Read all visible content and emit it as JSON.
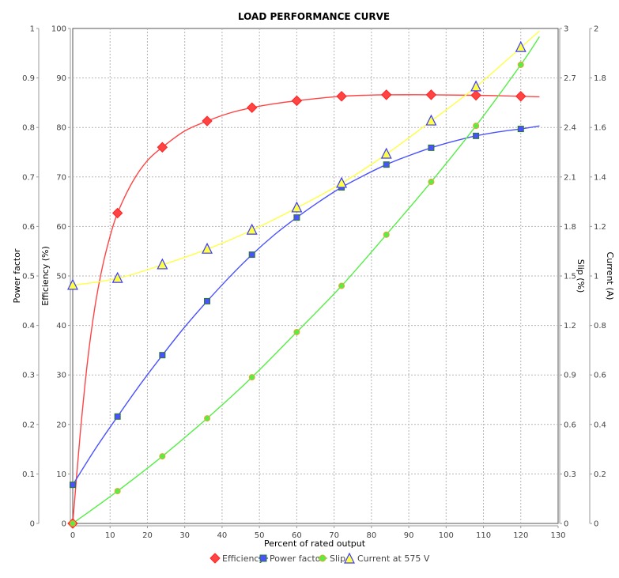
{
  "chart_data": {
    "type": "line",
    "title": "LOAD PERFORMANCE CURVE",
    "xlabel": "Percent of rated output",
    "xlim": [
      0,
      130
    ],
    "xticks": [
      0,
      10,
      20,
      30,
      40,
      50,
      60,
      70,
      80,
      90,
      100,
      110,
      120,
      130
    ],
    "grid": true,
    "legend_position": "bottom",
    "axes": {
      "power_factor": {
        "label": "Power factor",
        "side": "left-outer",
        "range": [
          0,
          1
        ],
        "ticks": [
          "0",
          "0.1",
          "0.2",
          "0.3",
          "0.4",
          "0.5",
          "0.6",
          "0.7",
          "0.8",
          "0.9",
          "1"
        ]
      },
      "efficiency": {
        "label": "Efficiency (%)",
        "side": "left-inner",
        "range": [
          0,
          100
        ],
        "ticks": [
          "0",
          "10",
          "20",
          "30",
          "40",
          "50",
          "60",
          "70",
          "80",
          "90",
          "100"
        ]
      },
      "slip": {
        "label": "Slip (%)",
        "side": "right-inner",
        "range": [
          0,
          3
        ],
        "ticks": [
          "0",
          "0.3",
          "0.6",
          "0.9",
          "1.2",
          "1.5",
          "1.8",
          "2.1",
          "2.4",
          "2.7",
          "3"
        ]
      },
      "current": {
        "label": "Current (A)",
        "side": "right-outer",
        "range": [
          0,
          2
        ],
        "ticks": [
          "0",
          "0.2",
          "0.4",
          "0.6",
          "0.8",
          "1",
          "1.2",
          "1.4",
          "1.6",
          "1.8",
          "2"
        ]
      }
    },
    "x": [
      0,
      12,
      24,
      36,
      48,
      60,
      72,
      84,
      96,
      108,
      120
    ],
    "series": [
      {
        "name": "Efficiency",
        "axis": "efficiency",
        "color": "#ff4444",
        "marker": "diamond",
        "values": [
          0,
          62.7,
          76.0,
          81.3,
          84.0,
          85.4,
          86.3,
          86.6,
          86.6,
          86.5,
          86.3
        ],
        "curve": [
          [
            0,
            0
          ],
          [
            2,
            18
          ],
          [
            4,
            33
          ],
          [
            6,
            44
          ],
          [
            8,
            52
          ],
          [
            10,
            58
          ],
          [
            12,
            62.7
          ],
          [
            16,
            69
          ],
          [
            20,
            73.3
          ],
          [
            24,
            76
          ],
          [
            30,
            79.3
          ],
          [
            36,
            81.3
          ],
          [
            42,
            82.9
          ],
          [
            48,
            84
          ],
          [
            54,
            84.8
          ],
          [
            60,
            85.4
          ],
          [
            66,
            85.9
          ],
          [
            72,
            86.3
          ],
          [
            78,
            86.5
          ],
          [
            84,
            86.6
          ],
          [
            96,
            86.6
          ],
          [
            108,
            86.5
          ],
          [
            120,
            86.3
          ],
          [
            125,
            86.2
          ]
        ]
      },
      {
        "name": "Power factor",
        "axis": "power_factor",
        "color": "#4a52ff",
        "marker": "square",
        "values": [
          0.078,
          0.216,
          0.34,
          0.449,
          0.543,
          0.618,
          0.679,
          0.725,
          0.759,
          0.783,
          0.797
        ],
        "curve": [
          [
            0,
            0.078
          ],
          [
            6,
            0.15
          ],
          [
            12,
            0.216
          ],
          [
            18,
            0.28
          ],
          [
            24,
            0.34
          ],
          [
            30,
            0.397
          ],
          [
            36,
            0.449
          ],
          [
            42,
            0.498
          ],
          [
            48,
            0.543
          ],
          [
            54,
            0.583
          ],
          [
            60,
            0.618
          ],
          [
            66,
            0.65
          ],
          [
            72,
            0.679
          ],
          [
            78,
            0.703
          ],
          [
            84,
            0.725
          ],
          [
            90,
            0.743
          ],
          [
            96,
            0.759
          ],
          [
            102,
            0.772
          ],
          [
            108,
            0.783
          ],
          [
            114,
            0.791
          ],
          [
            120,
            0.797
          ],
          [
            125,
            0.803
          ]
        ]
      },
      {
        "name": "Slip",
        "axis": "slip",
        "color": "#55ee44",
        "marker": "circle",
        "values": [
          0,
          0.196,
          0.407,
          0.637,
          0.886,
          1.16,
          1.44,
          1.75,
          2.07,
          2.41,
          2.78
        ],
        "curve": [
          [
            0,
            0
          ],
          [
            12,
            0.196
          ],
          [
            24,
            0.407
          ],
          [
            36,
            0.637
          ],
          [
            48,
            0.886
          ],
          [
            60,
            1.16
          ],
          [
            72,
            1.44
          ],
          [
            84,
            1.75
          ],
          [
            96,
            2.07
          ],
          [
            108,
            2.41
          ],
          [
            120,
            2.78
          ],
          [
            125,
            2.95
          ]
        ]
      },
      {
        "name": "Current at 575 V",
        "axis": "current",
        "color": "#ffff44",
        "marker": "triangle",
        "values": [
          0.962,
          0.99,
          1.045,
          1.108,
          1.185,
          1.275,
          1.374,
          1.492,
          1.626,
          1.764,
          1.923
        ],
        "curve": [
          [
            0,
            0.962
          ],
          [
            12,
            0.99
          ],
          [
            24,
            1.045
          ],
          [
            36,
            1.108
          ],
          [
            48,
            1.185
          ],
          [
            60,
            1.275
          ],
          [
            72,
            1.374
          ],
          [
            84,
            1.492
          ],
          [
            96,
            1.626
          ],
          [
            108,
            1.764
          ],
          [
            120,
            1.923
          ],
          [
            125,
            1.99
          ]
        ]
      }
    ]
  },
  "legend": {
    "items": [
      {
        "label": "Efficiency"
      },
      {
        "label": "Power factor"
      },
      {
        "label": "Slip"
      },
      {
        "label": "Current at 575 V"
      }
    ]
  }
}
